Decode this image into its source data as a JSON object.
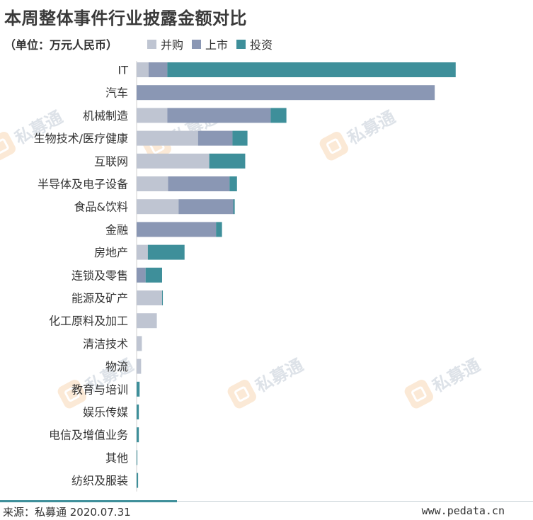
{
  "title": "本周整体事件行业披露金额对比",
  "unit_note": "（单位：万元人民币）",
  "legend": [
    {
      "label": "并购",
      "color": "#bfc5d2"
    },
    {
      "label": "上市",
      "color": "#8a97b4"
    },
    {
      "label": "投资",
      "color": "#3e8f9a"
    }
  ],
  "watermark_text": "私募通",
  "footer": {
    "source": "来源：私募通 2020.07.31",
    "website": "www.pedata.cn"
  },
  "chart_data": {
    "type": "bar",
    "orientation": "horizontal",
    "stacked": true,
    "title": "本周整体事件行业披露金额对比",
    "categories": [
      "IT",
      "汽车",
      "机械制造",
      "生物技术/医疗健康",
      "互联网",
      "半导体及电子设备",
      "食品&饮料",
      "金融",
      "房地产",
      "连锁及零售",
      "能源及矿产",
      "化工原料及加工",
      "清洁技术",
      "物流",
      "教育与培训",
      "娱乐传媒",
      "电信及增值业务",
      "其他",
      "纺织及服装"
    ],
    "series": [
      {
        "name": "并购",
        "color": "#bfc5d2",
        "values": [
          16,
          0,
          41,
          82,
          97,
          42,
          56,
          0,
          15,
          0,
          34,
          27,
          7,
          6,
          0,
          0,
          0,
          0,
          0
        ]
      },
      {
        "name": "上市",
        "color": "#8a97b4",
        "values": [
          25,
          398,
          138,
          46,
          0,
          82,
          73,
          106,
          0,
          12,
          0,
          0,
          0,
          0,
          0,
          0,
          0,
          0,
          0
        ]
      },
      {
        "name": "投资",
        "color": "#3e8f9a",
        "values": [
          385,
          0,
          21,
          20,
          48,
          10,
          2,
          8,
          49,
          22,
          1,
          0,
          0,
          0,
          4,
          3,
          3,
          1,
          2
        ]
      }
    ],
    "xlim": [
      0,
      430
    ],
    "grid": false,
    "legend_position": "top"
  }
}
